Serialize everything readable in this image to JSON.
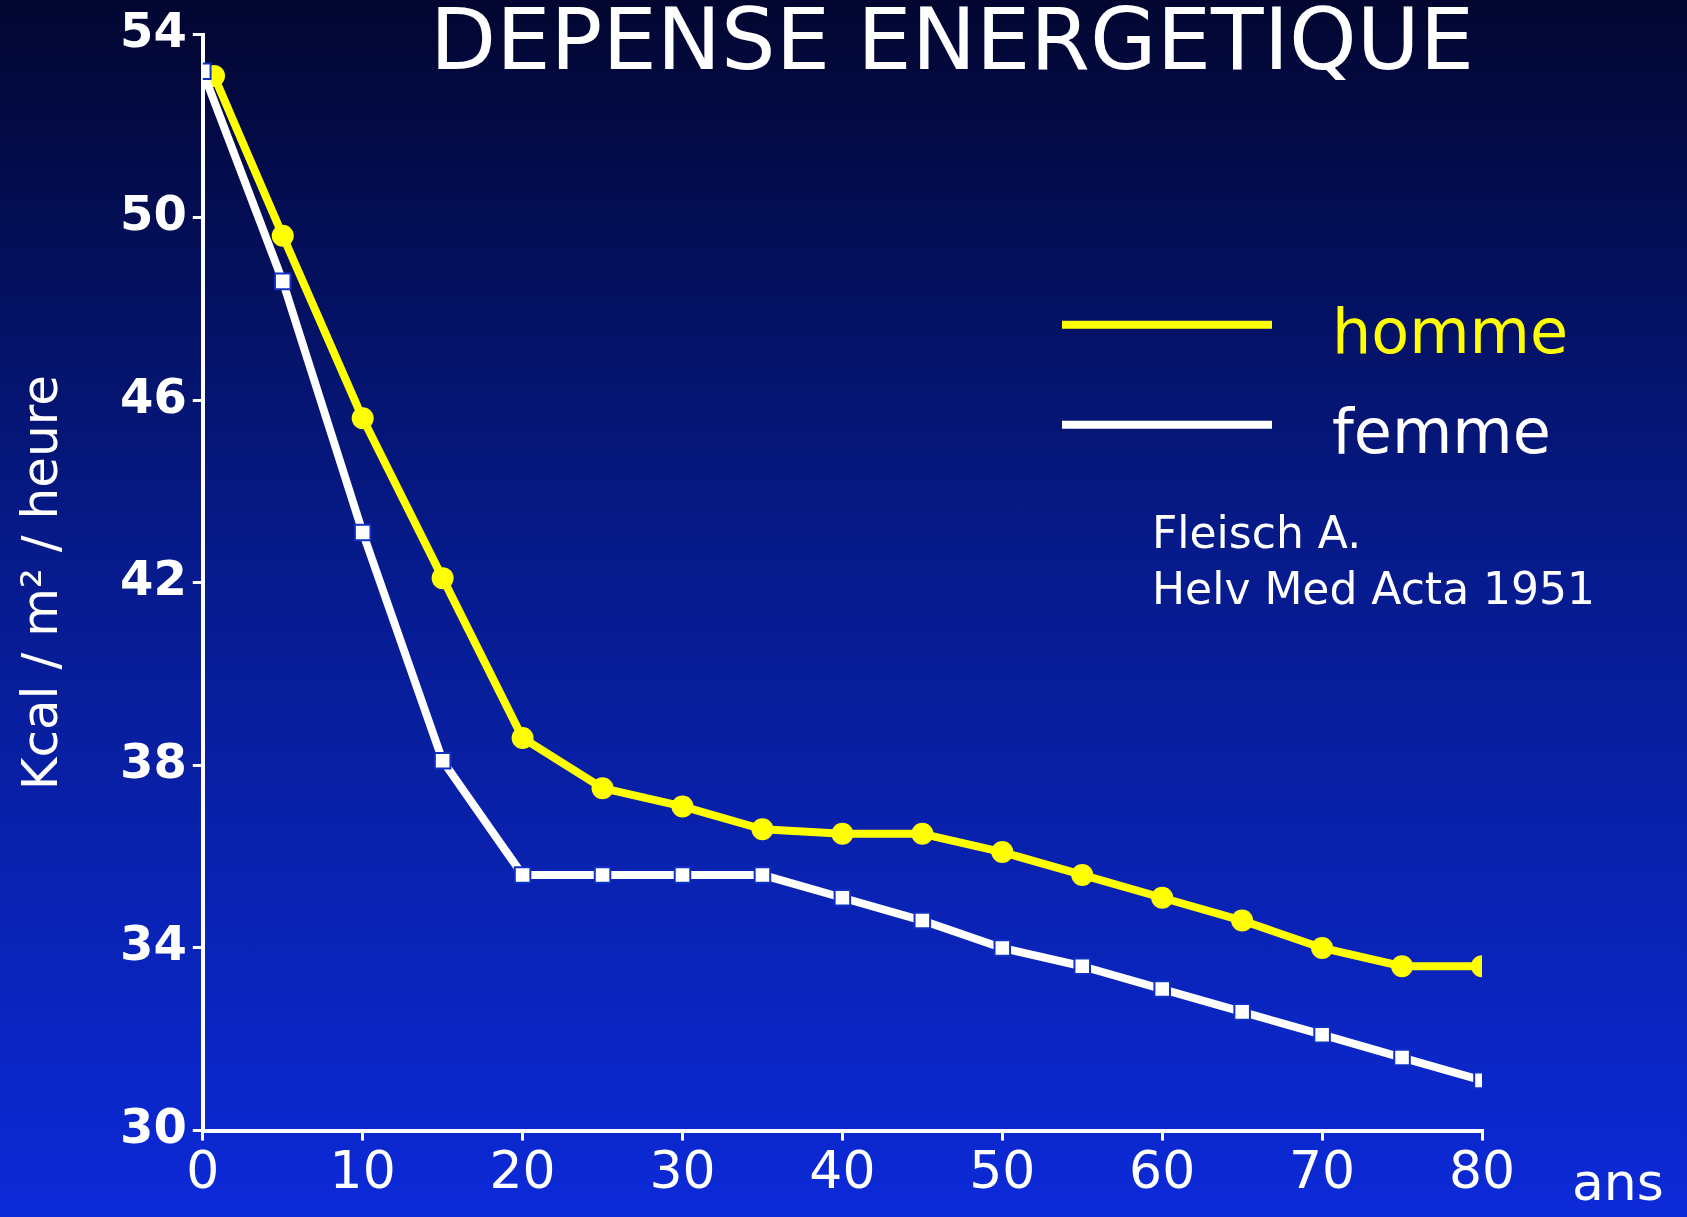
{
  "chart_data": {
    "type": "line",
    "title": "DEPENSE ENERGETIQUE",
    "xlabel": "ans",
    "ylabel": "Kcal / m² / heure",
    "xlim": [
      0,
      80
    ],
    "xticks": [
      0,
      10,
      20,
      30,
      40,
      50,
      60,
      70,
      80
    ],
    "ylim": [
      30,
      54
    ],
    "yticks": [
      30,
      34,
      38,
      42,
      46,
      50,
      54
    ],
    "grid": false,
    "legend": "top right",
    "annotations": [
      "Fleisch A.\nHelv Med Acta 1951"
    ],
    "series": [
      {
        "name": "homme",
        "color": "#ffff00",
        "marker": "circle",
        "x": [
          0.7,
          5,
          10,
          15,
          20,
          25,
          30,
          35,
          40,
          45,
          50,
          55,
          60,
          65,
          70,
          75,
          80
        ],
        "values": [
          53.1,
          49.6,
          45.6,
          42.1,
          38.6,
          37.5,
          37.1,
          36.6,
          36.5,
          36.5,
          36.1,
          35.6,
          35.1,
          34.6,
          34.0,
          33.6,
          33.6
        ]
      },
      {
        "name": "femme",
        "color": "#ffffff",
        "marker": "square",
        "x": [
          0,
          5,
          10,
          15,
          20,
          25,
          30,
          35,
          40,
          45,
          50,
          55,
          60,
          65,
          70,
          75,
          80
        ],
        "values": [
          53.2,
          48.6,
          43.1,
          38.1,
          35.6,
          35.6,
          35.6,
          35.6,
          35.1,
          34.6,
          34.0,
          33.6,
          33.1,
          32.6,
          32.1,
          31.6,
          31.1
        ]
      }
    ]
  }
}
